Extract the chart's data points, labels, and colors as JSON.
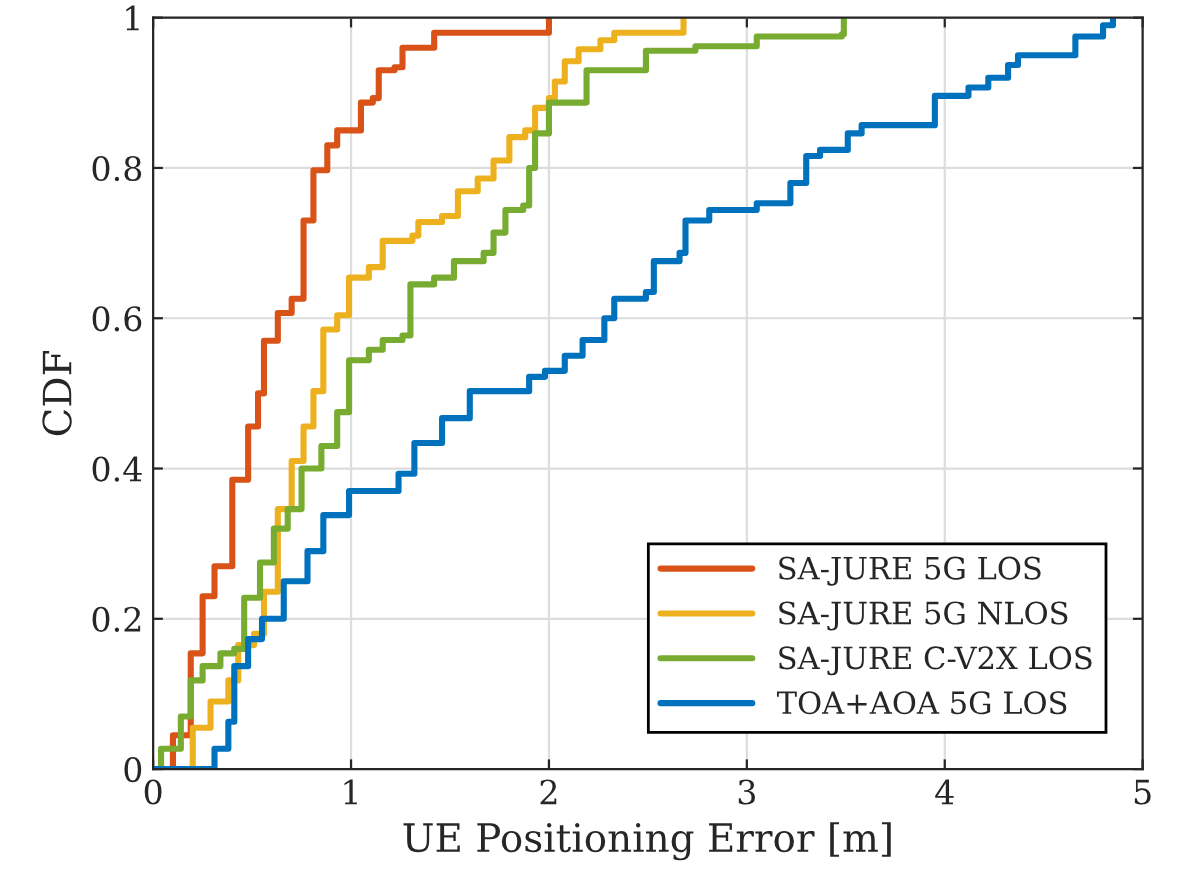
{
  "chart_data": {
    "type": "step",
    "xlabel": "UE Positioning Error [m]",
    "ylabel": "CDF",
    "xlim": [
      0,
      5
    ],
    "ylim": [
      0,
      1
    ],
    "xticks": [
      0,
      1,
      2,
      3,
      4,
      5
    ],
    "yticks": [
      0,
      0.2,
      0.4,
      0.6,
      0.8,
      1
    ],
    "grid": true,
    "legend": "bottom right",
    "line_style": "solid",
    "marker": "none",
    "series": [
      {
        "name": "SA-JURE 5G LOS",
        "color": "#d95319",
        "x": [
          0,
          0.1,
          0.19,
          0.25,
          0.31,
          0.4,
          0.48,
          0.53,
          0.56,
          0.63,
          0.7,
          0.76,
          0.81,
          0.88,
          0.93,
          1.05,
          1.11,
          1.14,
          1.22,
          1.26,
          1.37,
          1.42,
          1.98,
          2.0
        ],
        "values": [
          0,
          0.045,
          0.154,
          0.23,
          0.27,
          0.385,
          0.456,
          0.5,
          0.57,
          0.607,
          0.626,
          0.73,
          0.797,
          0.83,
          0.85,
          0.887,
          0.893,
          0.93,
          0.934,
          0.96,
          0.96,
          0.98,
          0.98,
          1
        ]
      },
      {
        "name": "SA-JURE 5G NLOS",
        "color": "#edb120",
        "x": [
          0.1,
          0.2,
          0.29,
          0.38,
          0.43,
          0.51,
          0.56,
          0.63,
          0.7,
          0.76,
          0.81,
          0.86,
          0.93,
          0.99,
          1.09,
          1.16,
          1.31,
          1.34,
          1.46,
          1.54,
          1.64,
          1.72,
          1.8,
          1.88,
          1.93,
          2.0,
          2.03,
          2.08,
          2.15,
          2.26,
          2.33,
          2.66,
          2.68
        ],
        "values": [
          0,
          0.055,
          0.09,
          0.118,
          0.165,
          0.18,
          0.236,
          0.346,
          0.41,
          0.456,
          0.503,
          0.585,
          0.604,
          0.654,
          0.668,
          0.703,
          0.71,
          0.728,
          0.736,
          0.769,
          0.786,
          0.81,
          0.841,
          0.85,
          0.88,
          0.893,
          0.915,
          0.942,
          0.958,
          0.97,
          0.98,
          0.98,
          1
        ]
      },
      {
        "name": "SA-JURE C-V2X LOS",
        "color": "#77ac30",
        "x": [
          0,
          0.04,
          0.14,
          0.19,
          0.25,
          0.34,
          0.41,
          0.46,
          0.54,
          0.61,
          0.68,
          0.75,
          0.85,
          0.93,
          0.99,
          1.09,
          1.16,
          1.26,
          1.3,
          1.42,
          1.52,
          1.67,
          1.72,
          1.78,
          1.87,
          1.9,
          1.93,
          2.0,
          2.13,
          2.19,
          2.34,
          2.49,
          2.74,
          3.05,
          3.48,
          3.49
        ],
        "values": [
          0,
          0.027,
          0.07,
          0.118,
          0.137,
          0.154,
          0.16,
          0.228,
          0.275,
          0.32,
          0.346,
          0.4,
          0.43,
          0.475,
          0.544,
          0.558,
          0.571,
          0.577,
          0.645,
          0.654,
          0.676,
          0.687,
          0.714,
          0.744,
          0.75,
          0.8,
          0.846,
          0.887,
          0.887,
          0.93,
          0.93,
          0.956,
          0.962,
          0.975,
          0.978,
          1
        ]
      },
      {
        "name": "TOA+AOA 5G LOS",
        "color": "#0072bd",
        "x": [
          0,
          0.25,
          0.31,
          0.38,
          0.41,
          0.48,
          0.55,
          0.66,
          0.78,
          0.86,
          0.99,
          1.16,
          1.24,
          1.32,
          1.46,
          1.6,
          1.85,
          1.9,
          1.98,
          2.08,
          2.17,
          2.28,
          2.33,
          2.49,
          2.53,
          2.66,
          2.69,
          2.81,
          3.05,
          3.22,
          3.3,
          3.37,
          3.51,
          3.58,
          3.9,
          3.95,
          4.12,
          4.22,
          4.32,
          4.37,
          4.61,
          4.66,
          4.8,
          4.85
        ],
        "values": [
          0,
          0,
          0.027,
          0.063,
          0.137,
          0.173,
          0.2,
          0.25,
          0.29,
          0.338,
          0.37,
          0.37,
          0.393,
          0.434,
          0.467,
          0.503,
          0.503,
          0.522,
          0.53,
          0.55,
          0.571,
          0.6,
          0.626,
          0.635,
          0.676,
          0.687,
          0.73,
          0.744,
          0.753,
          0.78,
          0.816,
          0.824,
          0.846,
          0.857,
          0.857,
          0.896,
          0.907,
          0.92,
          0.937,
          0.95,
          0.95,
          0.975,
          0.99,
          1
        ]
      }
    ]
  }
}
